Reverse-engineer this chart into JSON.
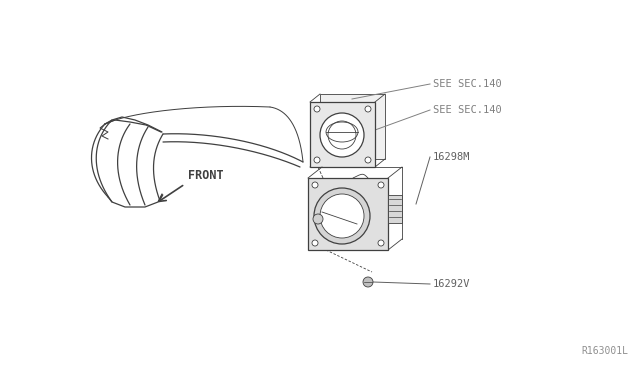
{
  "bg_color": "#ffffff",
  "line_color": "#404040",
  "label_color": "#606060",
  "ref_label_color": "#808080",
  "diagram_ref": "R163001L",
  "labels": {
    "see_sec_140_top": "SEE SEC.140",
    "see_sec_140_bot": "SEE SEC.140",
    "part_16298M": "16298M",
    "part_16292V": "16292V",
    "front_label": "FRONT"
  },
  "figure_size": [
    6.4,
    3.72
  ],
  "dpi": 100
}
